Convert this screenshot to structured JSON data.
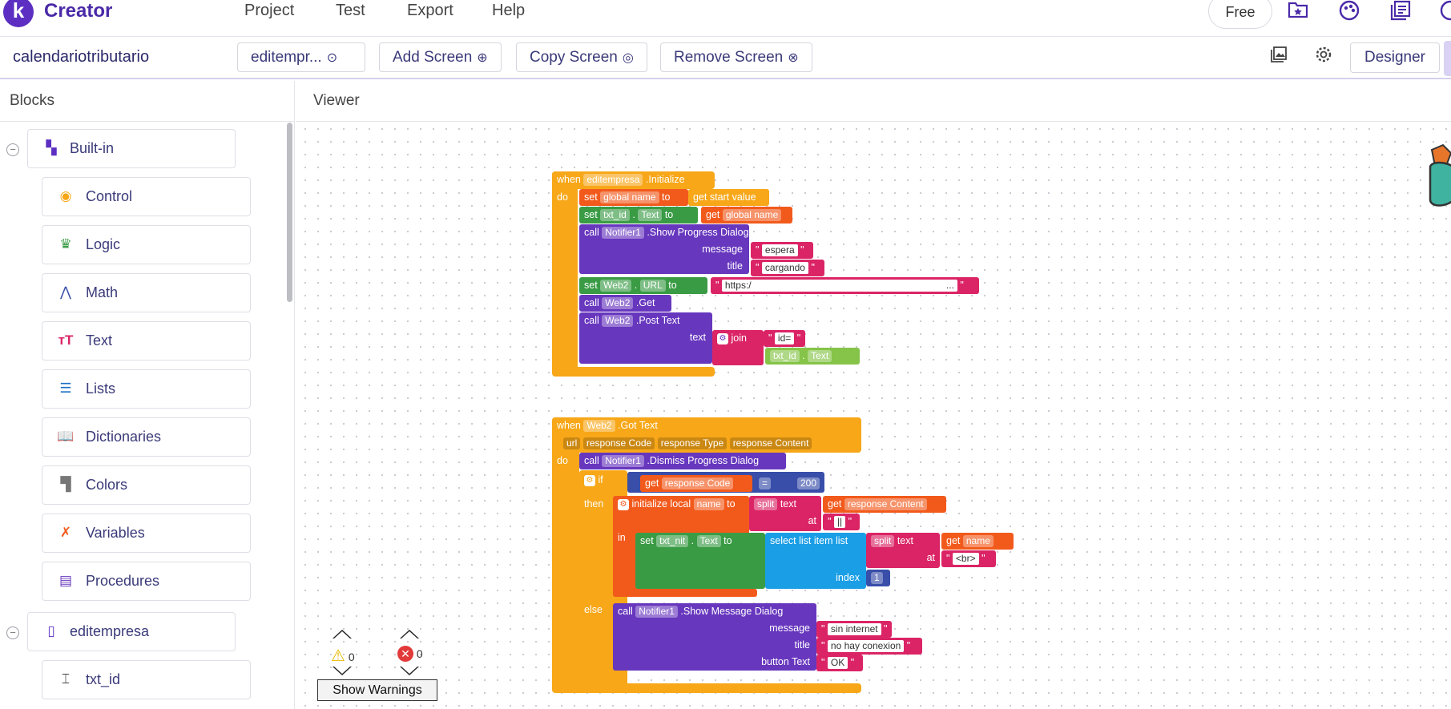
{
  "header": {
    "logo_letter": "k",
    "brand": "Creator",
    "menu": [
      "Project",
      "Test",
      "Export",
      "Help"
    ],
    "free_label": "Free",
    "icons": [
      "folder-star-icon",
      "palette-icon",
      "library-icon",
      "help-icon"
    ]
  },
  "toolbar": {
    "project_name": "calendariotributario",
    "screen_select": "editempr...",
    "add_screen": "Add Screen",
    "copy_screen": "Copy Screen",
    "remove_screen": "Remove Screen",
    "designer": "Designer"
  },
  "blocks_panel": {
    "title": "Blocks",
    "builtin": "Built-in",
    "categories": [
      "Control",
      "Logic",
      "Math",
      "Text",
      "Lists",
      "Dictionaries",
      "Colors",
      "Variables",
      "Procedures"
    ],
    "screen": "editempresa",
    "components": [
      "txt_id"
    ]
  },
  "viewer": {
    "title": "Viewer"
  },
  "block1": {
    "when": "when",
    "component": "editempresa",
    "event": ".Initialize",
    "do": "do",
    "set": "set",
    "global_name": "global name",
    "to": "to",
    "get_start": "get start value",
    "txt_id": "txt_id",
    "dot": ".",
    "text_prop": "Text",
    "get": "get",
    "call": "call",
    "notifier": "Notifier1",
    "show_progress": ".Show Progress Dialog",
    "message": "message",
    "espera": "espera",
    "title": "title",
    "cargando": "cargando",
    "web2": "Web2",
    "url_prop": "URL",
    "https": "https:/",
    "ellipsis": "...",
    "get_method": ".Get",
    "post_text": ".Post Text",
    "text": "text",
    "join": "join",
    "id_eq": "id="
  },
  "block2": {
    "when": "when",
    "component": "Web2",
    "event": ".Got Text",
    "params": [
      "url",
      "response Code",
      "response Type",
      "response Content"
    ],
    "do": "do",
    "call": "call",
    "notifier": "Notifier1",
    "dismiss": ".Dismiss Progress Dialog",
    "if": "if",
    "get": "get",
    "response_code": "response Code",
    "eq": "=",
    "value_200": "200",
    "then": "then",
    "init_local": "initialize local",
    "name": "name",
    "to": "to",
    "split": "split",
    "text": "text",
    "response_content": "response Content",
    "at": "at",
    "pipe": "||",
    "in": "in",
    "set": "set",
    "txt_nit": "txt_nit",
    "dot": ".",
    "text_prop": "Text",
    "select_list_item": "select list item",
    "list": "list",
    "br": "<br>",
    "index": "index",
    "index_val": "1",
    "else": "else",
    "show_message": ".Show Message Dialog",
    "message": "message",
    "sin_internet": "sin internet",
    "title": "title",
    "no_conexion": "no hay conexion",
    "button_text": "button Text",
    "ok": "OK"
  },
  "warnings": {
    "warn_count": "0",
    "error_count": "0",
    "show_warnings": "Show Warnings"
  }
}
